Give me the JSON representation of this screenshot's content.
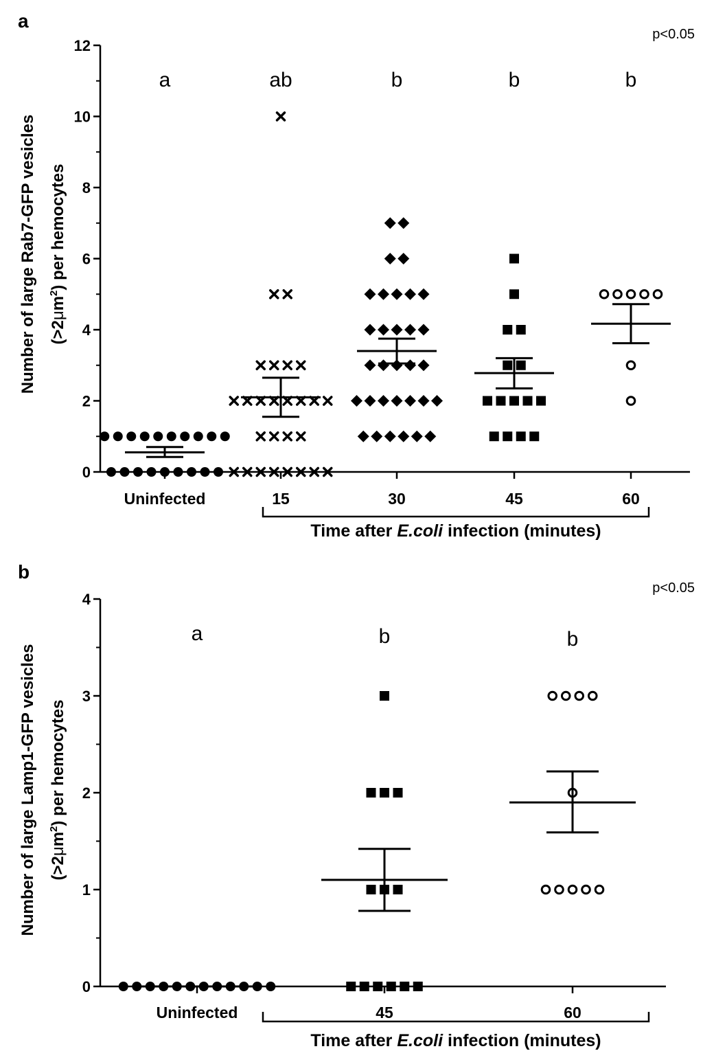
{
  "chart_data": [
    {
      "type": "scatter",
      "panel": "a",
      "annotation": "p<0.05",
      "ylabel_line1": "Number of large Rab7-GFP vesicles",
      "ylabel_line2_pre": "(>2",
      "ylabel_line2_mu": "μ",
      "ylabel_line2_m": "m",
      "ylabel_line2_sup": "2",
      "ylabel_line2_post": ") per hemocytes",
      "xlabel_pre": "Time after ",
      "xlabel_italic": "E.coli",
      "xlabel_post": " infection (minutes)",
      "ylim": [
        0,
        12
      ],
      "yticks": [
        "0",
        "2",
        "4",
        "6",
        "8",
        "10",
        "12"
      ],
      "groups": [
        {
          "label": "Uninfected",
          "letter": "a",
          "marker": "circle",
          "mean": 0.55,
          "sem_low": 0.42,
          "sem_high": 0.7,
          "points": [
            0,
            0,
            0,
            0,
            0,
            0,
            0,
            0,
            0,
            1,
            1,
            1,
            1,
            1,
            1,
            1,
            1,
            1,
            1
          ]
        },
        {
          "label": "15",
          "letter": "ab",
          "marker": "x",
          "mean": 2.1,
          "sem_low": 1.55,
          "sem_high": 2.65,
          "points": [
            10,
            5,
            5,
            3,
            3,
            3,
            3,
            2,
            2,
            2,
            2,
            2,
            2,
            2,
            2,
            1,
            1,
            1,
            1,
            0,
            0,
            0,
            0,
            0,
            0,
            0,
            0
          ]
        },
        {
          "label": "30",
          "letter": "b",
          "marker": "diamond",
          "mean": 3.4,
          "sem_low": 3.05,
          "sem_high": 3.75,
          "points": [
            7,
            7,
            6,
            6,
            5,
            5,
            5,
            5,
            5,
            4,
            4,
            4,
            4,
            4,
            3,
            3,
            3,
            3,
            3,
            2,
            2,
            2,
            2,
            2,
            2,
            2,
            1,
            1,
            1,
            1,
            1,
            1
          ]
        },
        {
          "label": "45",
          "letter": "b",
          "marker": "square",
          "mean": 2.78,
          "sem_low": 2.35,
          "sem_high": 3.2,
          "points": [
            6,
            5,
            4,
            4,
            3,
            3,
            2,
            2,
            2,
            2,
            2,
            1,
            1,
            1,
            1
          ]
        },
        {
          "label": "60",
          "letter": "b",
          "marker": "open-circle",
          "mean": 4.17,
          "sem_low": 3.62,
          "sem_high": 4.72,
          "points": [
            5,
            5,
            5,
            5,
            5,
            3,
            2
          ]
        }
      ]
    },
    {
      "type": "scatter",
      "panel": "b",
      "annotation": "p<0.05",
      "ylabel_line1": "Number of large Lamp1-GFP vesicles",
      "ylabel_line2_pre": "(>2",
      "ylabel_line2_mu": "μ",
      "ylabel_line2_m": "m",
      "ylabel_line2_sup": "2",
      "ylabel_line2_post": ") per hemocytes",
      "xlabel_pre": "Time after ",
      "xlabel_italic": "E.coli",
      "xlabel_post": " infection (minutes)",
      "ylim": [
        0,
        4
      ],
      "yticks": [
        "0",
        "1",
        "2",
        "3",
        "4"
      ],
      "groups": [
        {
          "label": "Uninfected",
          "letter": "a",
          "marker": "circle",
          "mean": 0,
          "sem_low": 0,
          "sem_high": 0,
          "points": [
            0,
            0,
            0,
            0,
            0,
            0,
            0,
            0,
            0,
            0,
            0,
            0
          ]
        },
        {
          "label": "45",
          "letter": "b",
          "marker": "square",
          "mean": 1.1,
          "sem_low": 0.78,
          "sem_high": 1.42,
          "points": [
            3,
            2,
            2,
            2,
            1,
            1,
            1,
            0,
            0,
            0,
            0,
            0,
            0
          ]
        },
        {
          "label": "60",
          "letter": "b",
          "marker": "open-circle",
          "mean": 1.9,
          "sem_low": 1.59,
          "sem_high": 2.22,
          "points": [
            3,
            3,
            3,
            3,
            2,
            1,
            1,
            1,
            1,
            1
          ]
        }
      ]
    }
  ]
}
